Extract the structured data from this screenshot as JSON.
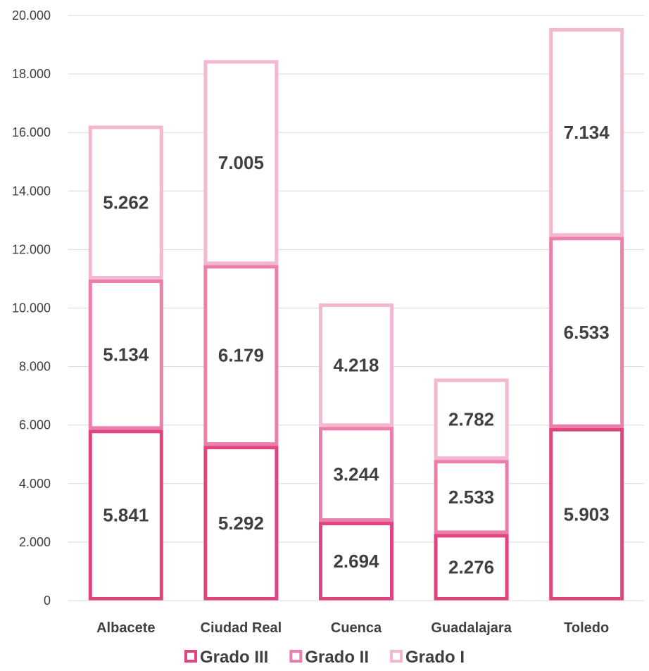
{
  "chart_data": {
    "type": "bar",
    "stacked": true,
    "categories": [
      "Albacete",
      "Ciudad Real",
      "Cuenca",
      "Guadalajara",
      "Toledo"
    ],
    "series": [
      {
        "name": "Grado III",
        "values": [
          5841,
          5292,
          2694,
          2276,
          5903
        ],
        "labels": [
          "5.841",
          "5.292",
          "2.694",
          "2.276",
          "5.903"
        ],
        "color": "#e0457f"
      },
      {
        "name": "Grado II",
        "values": [
          5134,
          6179,
          3244,
          2533,
          6533
        ],
        "labels": [
          "5.134",
          "6.179",
          "3.244",
          "2.533",
          "6.533"
        ],
        "color": "#ea7fac"
      },
      {
        "name": "Grado I",
        "values": [
          5262,
          7005,
          4218,
          2782,
          7134
        ],
        "labels": [
          "5.262",
          "7.005",
          "4.218",
          "2.782",
          "7.134"
        ],
        "color": "#f4b7d0"
      }
    ],
    "ylim": [
      0,
      20000
    ],
    "yticks": [
      0,
      2000,
      4000,
      6000,
      8000,
      10000,
      12000,
      14000,
      16000,
      18000,
      20000
    ],
    "ytick_labels": [
      "0",
      "2.000",
      "4.000",
      "6.000",
      "8.000",
      "10.000",
      "12.000",
      "14.000",
      "16.000",
      "18.000",
      "20.000"
    ],
    "grid": true,
    "legend_position": "bottom"
  }
}
